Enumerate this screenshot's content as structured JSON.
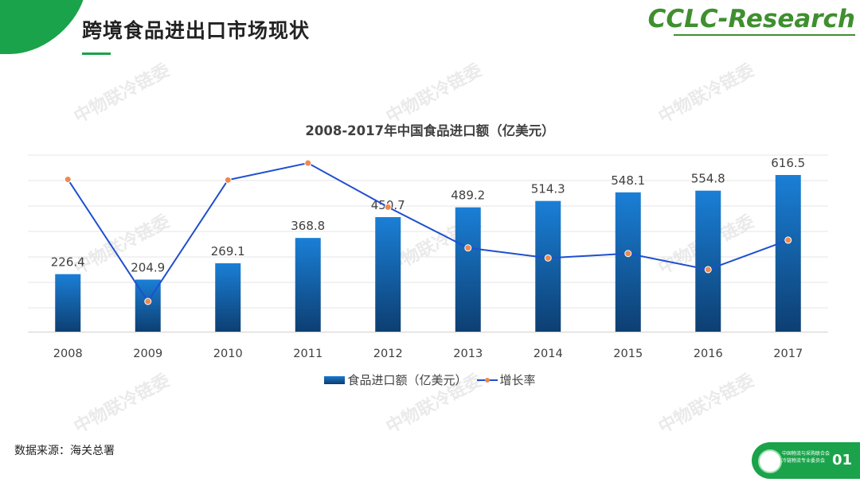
{
  "header": {
    "title": "跨境食品进出口市场现状",
    "brand": "CCLC-Research"
  },
  "watermark": "中物联冷链委",
  "chart_data": {
    "type": "bar",
    "title": "2008-2017年中国食品进口额（亿美元）",
    "categories": [
      "2008",
      "2009",
      "2010",
      "2011",
      "2012",
      "2013",
      "2014",
      "2015",
      "2016",
      "2017"
    ],
    "series": [
      {
        "name": "食品进口额（亿美元）",
        "type": "bar",
        "values": [
          226.4,
          204.9,
          269.1,
          368.8,
          450.7,
          489.2,
          514.3,
          548.1,
          554.8,
          616.5
        ],
        "labels": [
          "226.4",
          "204.9",
          "269.1",
          "368.8",
          "450.7",
          "489.2",
          "514.3",
          "548.1",
          "554.8",
          "616.5"
        ]
      },
      {
        "name": "增长率",
        "type": "line",
        "values": [
          0.315,
          -0.095,
          0.313,
          0.37,
          0.222,
          0.085,
          0.051,
          0.066,
          0.012,
          0.111
        ]
      }
    ],
    "ylim": [
      0,
      616.5
    ],
    "y2lim": [
      -0.095,
      0.37
    ],
    "grid": true,
    "legend": "bottom",
    "colors": {
      "bar_top": "#1a7fd6",
      "bar_bottom": "#0d3f72",
      "line": "#1f4fd0",
      "marker": "#ec8a50",
      "grid": "#e6e6e6"
    }
  },
  "footer": {
    "source": "数据来源：海关总署",
    "org_line1": "中国物流与采购联合会",
    "org_line2": "冷链物流专业委员会",
    "page": "01"
  }
}
